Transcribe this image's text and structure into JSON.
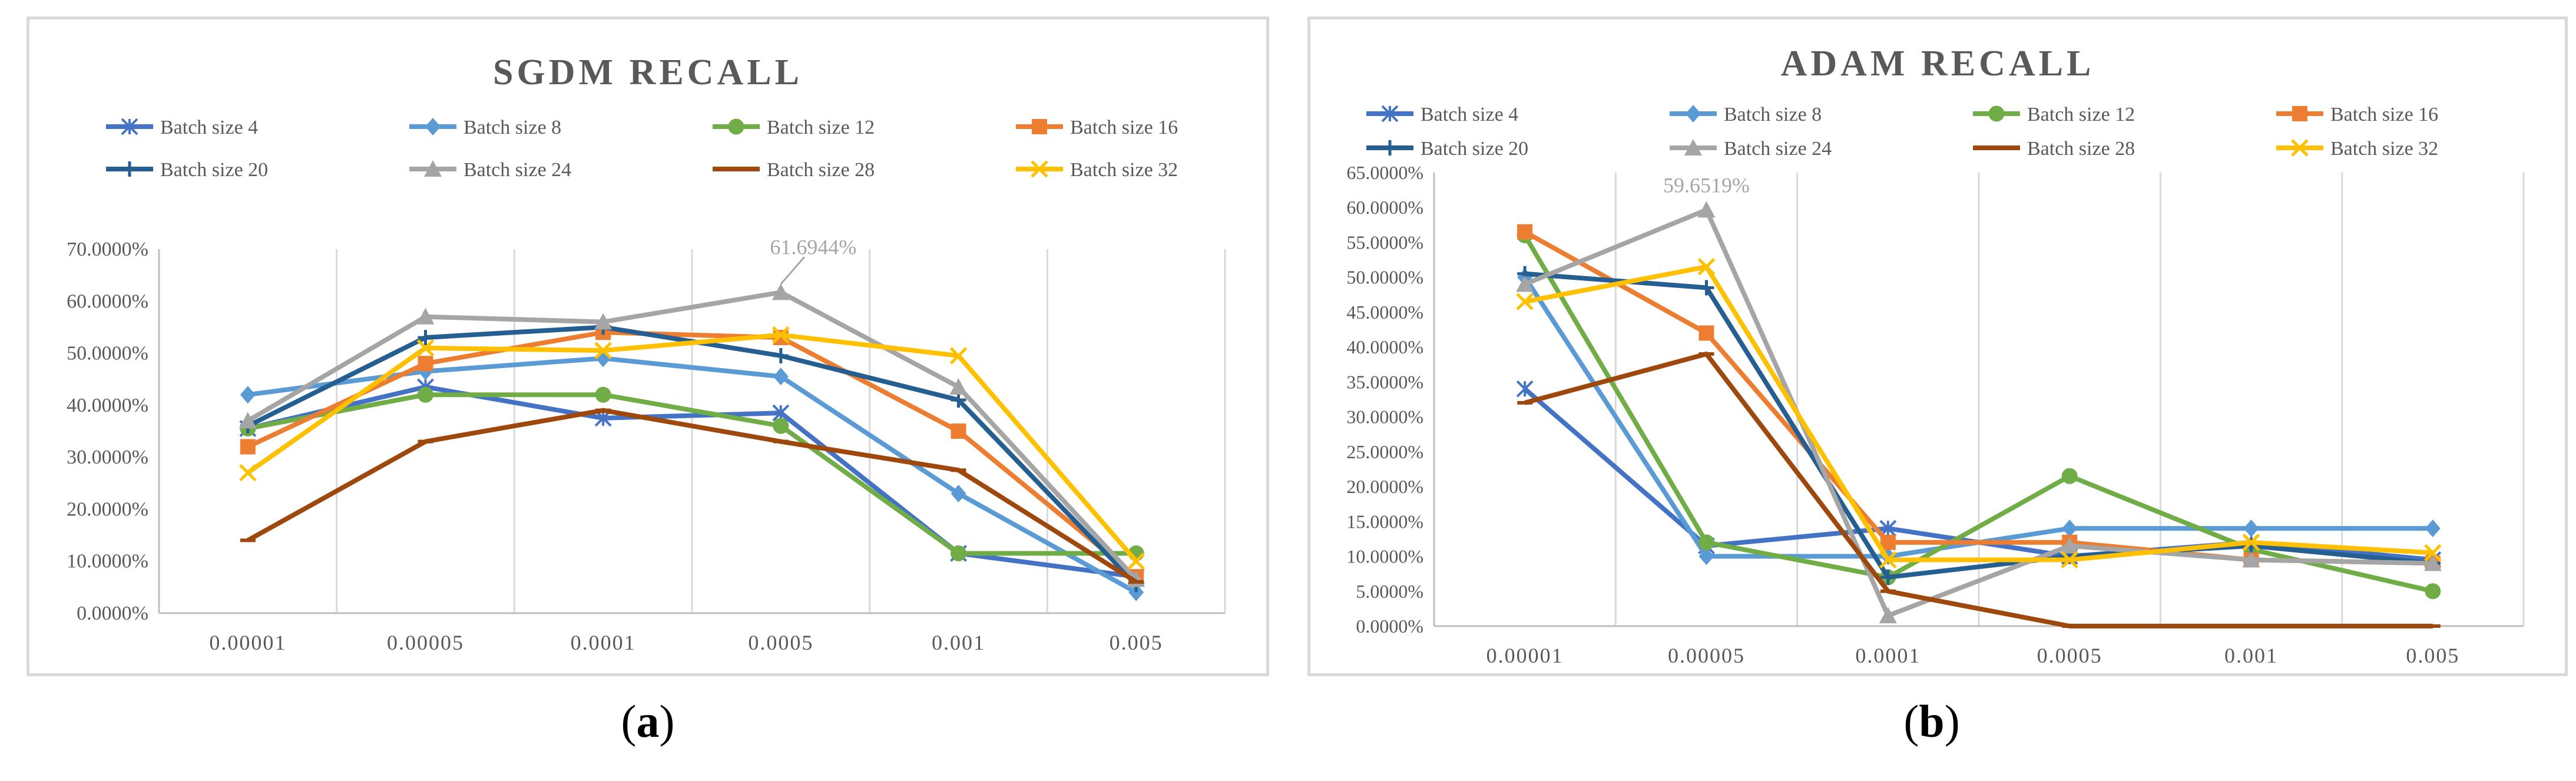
{
  "chart_data": [
    {
      "type": "line",
      "title": "SGDM RECALL",
      "caption_label": "a",
      "x": [
        "0.00001",
        "0.00005",
        "0.0001",
        "0.0005",
        "0.001",
        "0.005"
      ],
      "y_ticks": [
        "0.0000%",
        "10.0000%",
        "20.0000%",
        "30.0000%",
        "40.0000%",
        "50.0000%",
        "60.0000%",
        "70.0000%"
      ],
      "ylim": [
        0,
        70
      ],
      "annotation": {
        "text": "61.6944%",
        "series": "Batch size 24",
        "index": 3
      },
      "series": [
        {
          "name": "Batch size 4",
          "color": "#4472c4",
          "marker": "asterisk",
          "values": [
            35.5,
            43.5,
            37.5,
            38.5,
            11.5,
            7.0
          ]
        },
        {
          "name": "Batch size 8",
          "color": "#5b9bd5",
          "marker": "diamond",
          "values": [
            42.0,
            46.5,
            49.0,
            45.5,
            23.0,
            4.0
          ]
        },
        {
          "name": "Batch size 12",
          "color": "#70ad47",
          "marker": "circle",
          "values": [
            35.5,
            42.0,
            42.0,
            36.0,
            11.5,
            11.5
          ]
        },
        {
          "name": "Batch size 16",
          "color": "#ed7d31",
          "marker": "square",
          "values": [
            32.0,
            48.0,
            54.0,
            53.0,
            35.0,
            7.0
          ]
        },
        {
          "name": "Batch size 20",
          "color": "#255e91",
          "marker": "plus",
          "values": [
            36.0,
            53.0,
            55.0,
            49.5,
            41.0,
            5.5
          ]
        },
        {
          "name": "Batch size 24",
          "color": "#a5a5a5",
          "marker": "triangle",
          "values": [
            37.0,
            57.0,
            56.0,
            61.6944,
            43.5,
            6.5
          ]
        },
        {
          "name": "Batch size 28",
          "color": "#9e480e",
          "marker": "dash",
          "values": [
            14.0,
            33.0,
            39.0,
            33.0,
            27.5,
            6.0
          ]
        },
        {
          "name": "Batch size 32",
          "color": "#ffc000",
          "marker": "x",
          "values": [
            27.0,
            51.0,
            50.5,
            53.5,
            49.5,
            10.0
          ]
        }
      ]
    },
    {
      "type": "line",
      "title": "ADAM RECALL",
      "caption_label": "b",
      "x": [
        "0.00001",
        "0.00005",
        "0.0001",
        "0.0005",
        "0.001",
        "0.005"
      ],
      "y_ticks": [
        "0.0000%",
        "5.0000%",
        "10.0000%",
        "15.0000%",
        "20.0000%",
        "25.0000%",
        "30.0000%",
        "35.0000%",
        "40.0000%",
        "45.0000%",
        "50.0000%",
        "55.0000%",
        "60.0000%",
        "65.0000%"
      ],
      "ylim": [
        0,
        65
      ],
      "annotation": {
        "text": "59.6519%",
        "series": "Batch size 24",
        "index": 1
      },
      "series": [
        {
          "name": "Batch size 4",
          "color": "#4472c4",
          "marker": "asterisk",
          "values": [
            34.0,
            11.5,
            14.0,
            10.0,
            12.0,
            9.5
          ]
        },
        {
          "name": "Batch size 8",
          "color": "#5b9bd5",
          "marker": "diamond",
          "values": [
            50.0,
            10.0,
            10.0,
            14.0,
            14.0,
            14.0
          ]
        },
        {
          "name": "Batch size 12",
          "color": "#70ad47",
          "marker": "circle",
          "values": [
            56.0,
            12.0,
            7.0,
            21.5,
            11.0,
            5.0
          ]
        },
        {
          "name": "Batch size 16",
          "color": "#ed7d31",
          "marker": "square",
          "values": [
            56.5,
            42.0,
            12.0,
            12.0,
            9.5,
            9.0
          ]
        },
        {
          "name": "Batch size 20",
          "color": "#255e91",
          "marker": "plus",
          "values": [
            50.5,
            48.5,
            7.0,
            10.0,
            11.5,
            9.0
          ]
        },
        {
          "name": "Batch size 24",
          "color": "#a5a5a5",
          "marker": "triangle",
          "values": [
            49.0,
            59.6519,
            1.5,
            11.5,
            9.5,
            9.0
          ]
        },
        {
          "name": "Batch size 28",
          "color": "#9e480e",
          "marker": "dash",
          "values": [
            32.0,
            39.0,
            5.0,
            0.0,
            0.0,
            0.0
          ]
        },
        {
          "name": "Batch size 32",
          "color": "#ffc000",
          "marker": "x",
          "values": [
            46.5,
            51.5,
            9.5,
            9.5,
            12.0,
            10.5
          ]
        }
      ]
    }
  ]
}
